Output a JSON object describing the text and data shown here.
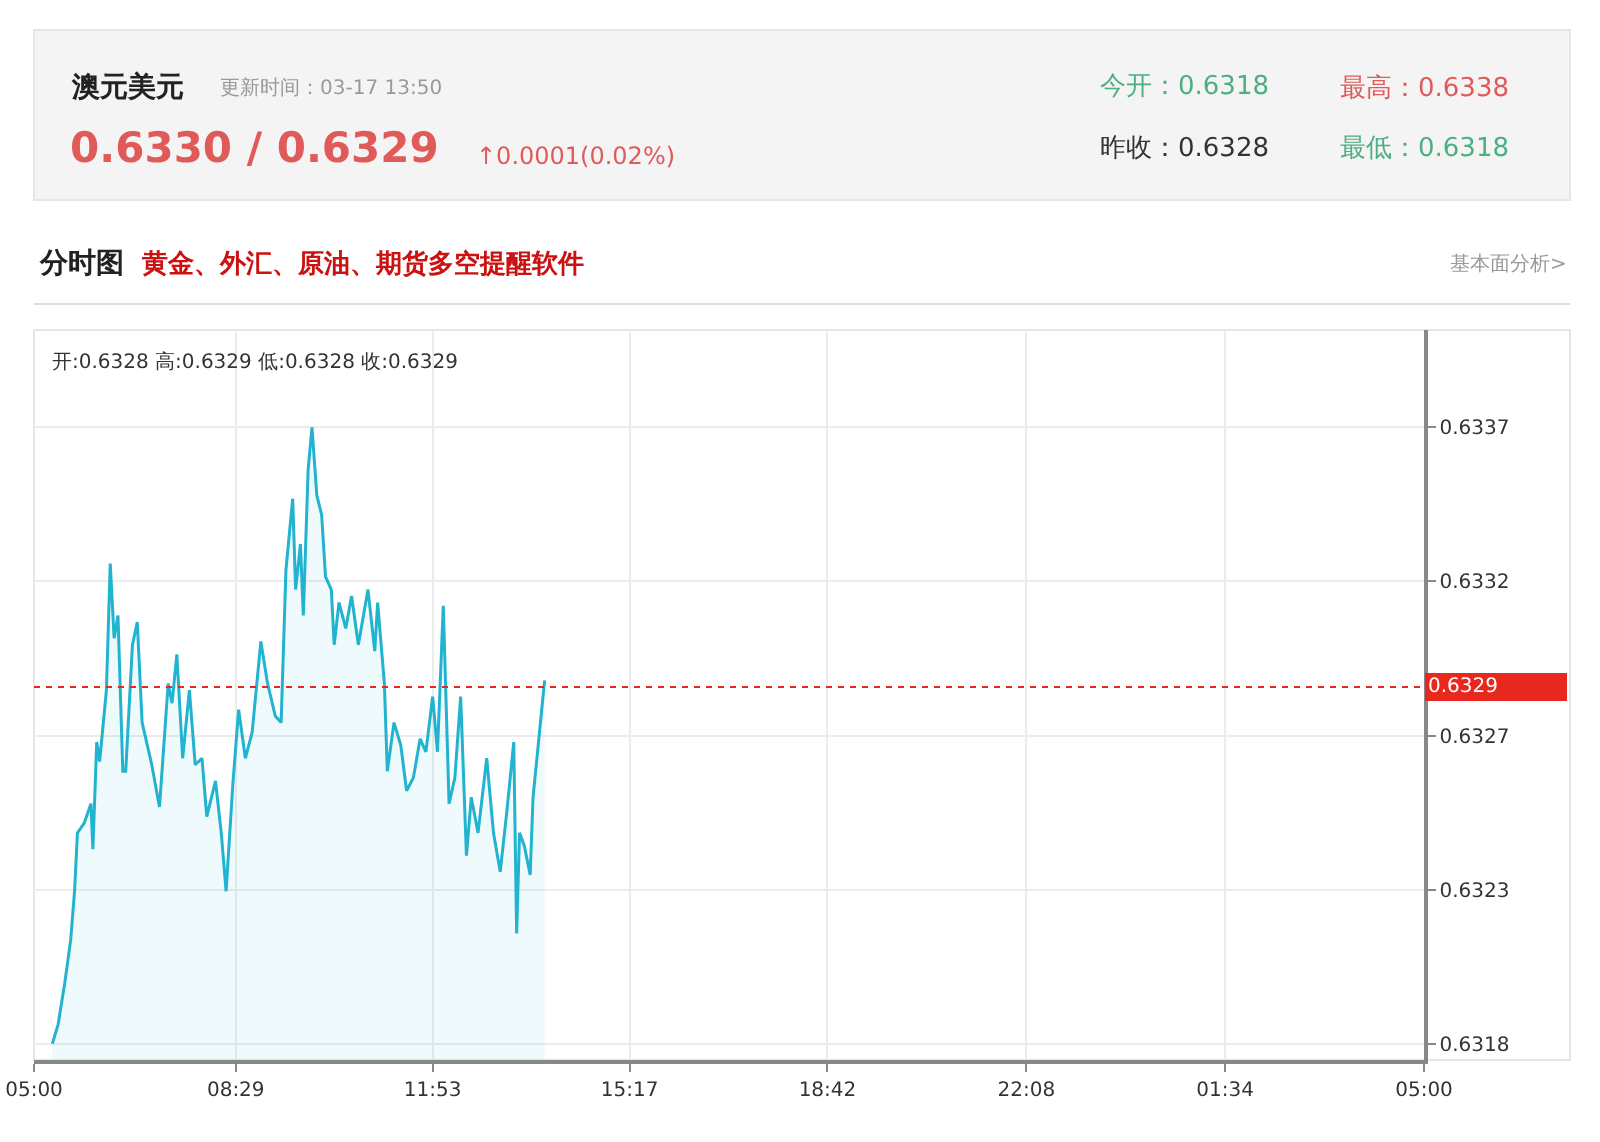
{
  "chart_data": {
    "type": "area",
    "title": "澳元美元",
    "subtitle": "更新时间：03-17 13:50",
    "annotations": [
      "0.6330 / 0.6329",
      "↑0.0001(0.02%)",
      "今开：0.6318",
      "最高：0.6338",
      "昨收：0.6328",
      "最低：0.6318",
      "分时图",
      "黄金、外汇、原油、期货多空提醒软件",
      "基本面分析>",
      "开:0.6328 高:0.6329 低:0.6328 收:0.6329"
    ],
    "x": [
      "--03-17T05:19",
      "--03-17T05:25",
      "--03-17T05:32",
      "--03-17T05:38",
      "--03-17T05:42",
      "--03-17T05:45",
      "--03-17T05:52",
      "--03-17T05:59",
      "--03-17T06:01",
      "--03-17T06:05",
      "--03-17T06:08",
      "--03-17T06:15",
      "--03-17T06:19",
      "--03-17T06:23",
      "--03-17T06:27",
      "--03-17T06:32",
      "--03-17T06:35",
      "--03-17T06:42",
      "--03-17T06:47",
      "--03-17T06:52",
      "--03-17T07:02",
      "--03-17T07:10",
      "--03-17T07:19",
      "--03-17T07:23",
      "--03-17T07:28",
      "--03-17T07:34",
      "--03-17T07:41",
      "--03-17T07:47",
      "--03-17T07:54",
      "--03-17T07:59",
      "--03-17T08:08",
      "--03-17T08:14",
      "--03-17T08:19",
      "--03-17T08:26",
      "--03-17T08:32",
      "--03-17T08:39",
      "--03-17T08:46",
      "--03-17T08:55",
      "--03-17T09:02",
      "--03-17T09:10",
      "--03-17T09:16",
      "--03-17T09:21",
      "--03-17T09:28",
      "--03-17T09:31",
      "--03-17T09:36",
      "--03-17T09:39",
      "--03-17T09:44",
      "--03-17T09:48",
      "--03-17T09:53",
      "--03-17T09:58",
      "--03-17T10:02",
      "--03-17T10:08",
      "--03-17T10:11",
      "--03-17T10:16",
      "--03-17T10:23",
      "--03-17T10:29",
      "--03-17T10:36",
      "--03-17T10:46",
      "--03-17T10:53",
      "--03-17T10:56",
      "--03-17T11:03",
      "--03-17T11:06",
      "--03-17T11:13",
      "--03-17T11:20",
      "--03-17T11:26",
      "--03-17T11:33",
      "--03-17T11:40",
      "--03-17T11:46",
      "--03-17T11:53",
      "--03-17T11:58",
      "--03-17T12:04",
      "--03-17T12:10",
      "--03-17T12:16",
      "--03-17T12:22",
      "--03-17T12:28",
      "--03-17T12:33",
      "--03-17T12:40",
      "--03-17T12:49",
      "--03-17T12:56",
      "--03-17T13:03",
      "--03-17T13:10",
      "--03-17T13:17",
      "--03-17T13:20",
      "--03-17T13:23",
      "--03-17T13:28",
      "--03-17T13:34",
      "--03-17T13:37",
      "--03-17T13:43",
      "--03-17T13:49"
    ],
    "series": [
      {
        "color": "#21b3cf",
        "values": [
          0.6318,
          0.63186,
          0.63199,
          0.63212,
          0.63227,
          0.63245,
          0.63248,
          0.63254,
          0.6324,
          0.63273,
          0.63267,
          0.63289,
          0.63328,
          0.63305,
          0.63312,
          0.63264,
          0.63264,
          0.63303,
          0.6331,
          0.63279,
          0.63266,
          0.63253,
          0.63291,
          0.63285,
          0.633,
          0.63268,
          0.63289,
          0.63266,
          0.63268,
          0.6325,
          0.63261,
          0.63245,
          0.63227,
          0.6326,
          0.63283,
          0.63268,
          0.63276,
          0.63304,
          0.63291,
          0.63281,
          0.63279,
          0.63326,
          0.63348,
          0.6332,
          0.63334,
          0.63312,
          0.63357,
          0.6337,
          0.63349,
          0.63343,
          0.63324,
          0.6332,
          0.63303,
          0.63316,
          0.63308,
          0.63318,
          0.63303,
          0.6332,
          0.63301,
          0.63316,
          0.63291,
          0.63264,
          0.63279,
          0.63272,
          0.63258,
          0.63262,
          0.63274,
          0.6327,
          0.63287,
          0.6327,
          0.63315,
          0.63254,
          0.63262,
          0.63287,
          0.63238,
          0.63256,
          0.63245,
          0.63268,
          0.63245,
          0.63233,
          0.63252,
          0.63273,
          0.63214,
          0.63245,
          0.63241,
          0.63232,
          0.63256,
          0.63274,
          0.63292
        ]
      }
    ],
    "xlim": [
      "--03-17T05:00",
      "--03-18T05:00"
    ],
    "xticks": [
      {
        "value": "--03-17T05:00",
        "label": "05:00"
      },
      {
        "value": "--03-17T08:29",
        "label": "08:29"
      },
      {
        "value": "--03-17T11:53",
        "label": "11:53"
      },
      {
        "value": "--03-17T15:17",
        "label": "15:17"
      },
      {
        "value": "--03-17T18:42",
        "label": "18:42"
      },
      {
        "value": "--03-17T22:08",
        "label": "22:08"
      },
      {
        "value": "--03-18T01:34",
        "label": "01:34"
      },
      {
        "value": "--03-18T05:00",
        "label": "05:00"
      }
    ],
    "ylim": [
      0.63175,
      0.634
    ],
    "yticks": [
      0.6318,
      {
        "value": 0.632275,
        "label": "0.6323"
      },
      {
        "value": 0.63275,
        "label": "0.6327"
      },
      {
        "value": 0.633225,
        "label": "0.6332"
      },
      0.6337
    ],
    "ref_lines": [
      {
        "axis": "y",
        "value": 0.6329,
        "label": "0.6329",
        "color": "#e8281f",
        "line_style": "dotted"
      }
    ],
    "grid": true,
    "marker": "none"
  }
}
